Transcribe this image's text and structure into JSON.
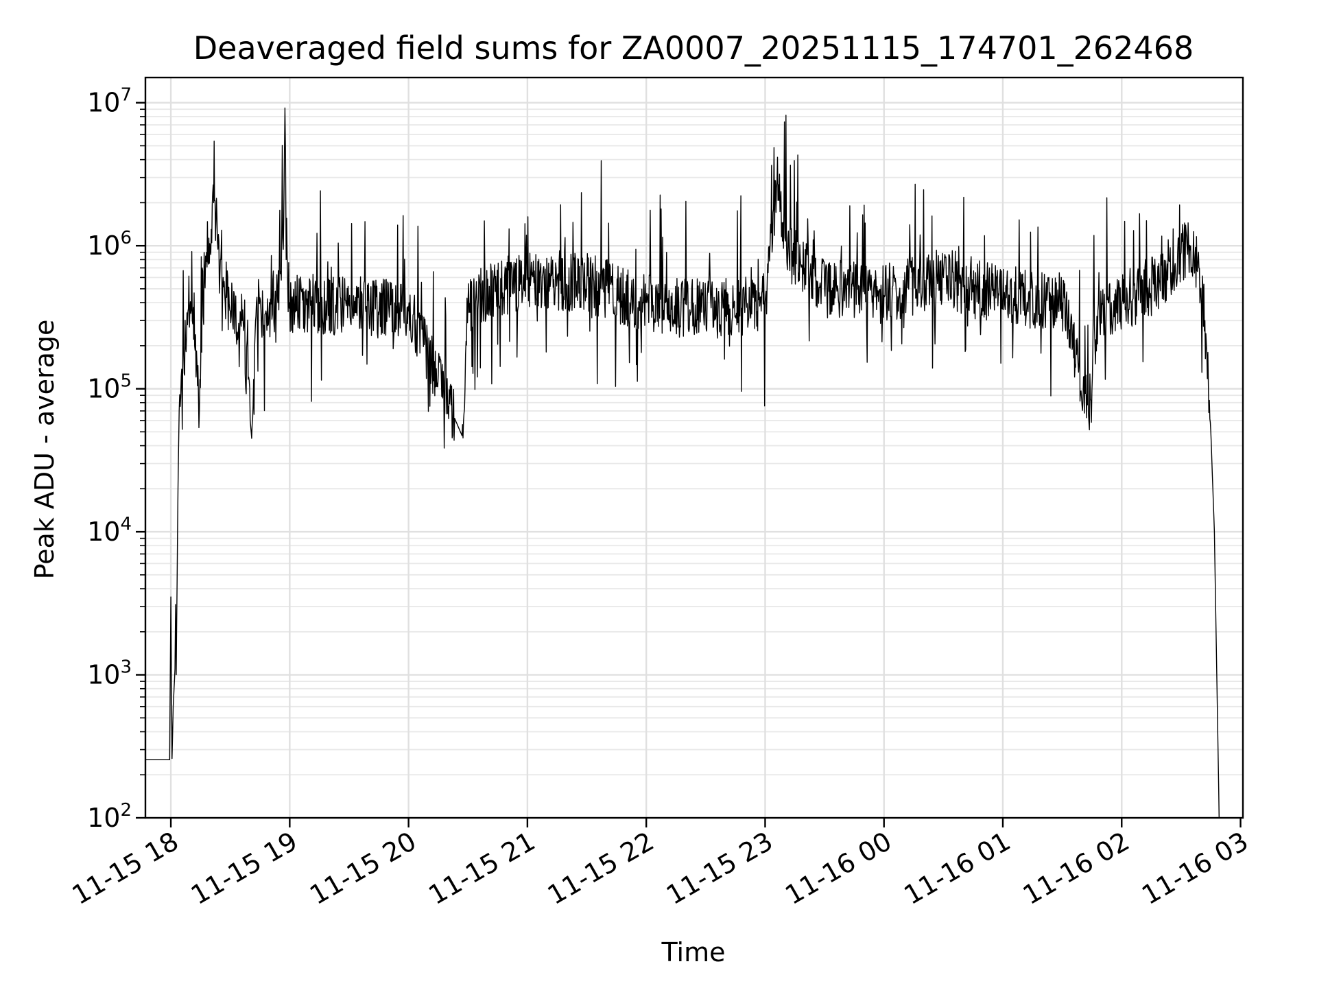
{
  "chart_data": {
    "type": "line",
    "title": "Deaveraged field sums for ZA0007_20251115_174701_262468",
    "xlabel": "Time",
    "ylabel": "Peak ADU - average",
    "yscale": "log",
    "ylim": [
      100,
      15000000
    ],
    "xlim_hours": [
      -0.214,
      9.02
    ],
    "grid": true,
    "legend": "none",
    "colors": {
      "line": "#000000",
      "grid": "#e0e0e0"
    },
    "x_ticks": [
      {
        "hours": 0,
        "label": "11-15 18"
      },
      {
        "hours": 1,
        "label": "11-15 19"
      },
      {
        "hours": 2,
        "label": "11-15 20"
      },
      {
        "hours": 3,
        "label": "11-15 21"
      },
      {
        "hours": 4,
        "label": "11-15 22"
      },
      {
        "hours": 5,
        "label": "11-15 23"
      },
      {
        "hours": 6,
        "label": "11-16 00"
      },
      {
        "hours": 7,
        "label": "11-16 01"
      },
      {
        "hours": 8,
        "label": "11-16 02"
      },
      {
        "hours": 9,
        "label": "11-16 03"
      }
    ],
    "y_ticks": [
      {
        "value": 100,
        "base": "10",
        "exp": "2"
      },
      {
        "value": 1000,
        "base": "10",
        "exp": "3"
      },
      {
        "value": 10000,
        "base": "10",
        "exp": "4"
      },
      {
        "value": 100000,
        "base": "10",
        "exp": "5"
      },
      {
        "value": 1000000,
        "base": "10",
        "exp": "6"
      },
      {
        "value": 10000000,
        "base": "10",
        "exp": "7"
      }
    ],
    "series": [
      {
        "name": "deaveraged field sum",
        "x_unit": "hours after 2025-11-15 18:00",
        "points": [
          [
            -0.214,
            255
          ],
          [
            -0.01,
            255
          ],
          [
            0.0,
            3500
          ],
          [
            0.01,
            260
          ],
          [
            0.02,
            600
          ],
          [
            0.035,
            1100
          ],
          [
            0.04,
            3100
          ],
          [
            0.045,
            1000
          ],
          [
            0.06,
            20000
          ],
          [
            0.07,
            70000
          ],
          [
            0.1,
            150000
          ],
          [
            0.14,
            280000
          ],
          [
            0.16,
            350000
          ],
          [
            0.18,
            300000
          ],
          [
            0.2,
            200000
          ],
          [
            0.22,
            150000
          ],
          [
            0.24,
            70000
          ],
          [
            0.26,
            180000
          ],
          [
            0.3,
            900000
          ],
          [
            0.34,
            1300000
          ],
          [
            0.36,
            2000000
          ],
          [
            0.38,
            1500000
          ],
          [
            0.4,
            1200000
          ],
          [
            0.42,
            800000
          ],
          [
            0.44,
            600000
          ],
          [
            0.5,
            350000
          ],
          [
            0.6,
            300000
          ],
          [
            0.68,
            45000
          ],
          [
            0.72,
            400000
          ],
          [
            0.8,
            350000
          ],
          [
            0.9,
            400000
          ],
          [
            0.95,
            1600000
          ],
          [
            0.96,
            9200000
          ],
          [
            0.97,
            800000
          ],
          [
            1.0,
            400000
          ],
          [
            1.5,
            380000
          ],
          [
            2.0,
            350000
          ],
          [
            2.45,
            47000
          ],
          [
            2.5,
            400000
          ],
          [
            3.0,
            600000
          ],
          [
            3.5,
            550000
          ],
          [
            4.0,
            400000
          ],
          [
            4.5,
            350000
          ],
          [
            5.0,
            400000
          ],
          [
            5.1,
            2800000
          ],
          [
            5.2,
            900000
          ],
          [
            5.5,
            500000
          ],
          [
            6.0,
            450000
          ],
          [
            6.5,
            600000
          ],
          [
            7.0,
            450000
          ],
          [
            7.5,
            400000
          ],
          [
            7.72,
            68000
          ],
          [
            7.8,
            350000
          ],
          [
            8.0,
            400000
          ],
          [
            8.3,
            550000
          ],
          [
            8.5,
            900000
          ],
          [
            8.58,
            1000000
          ],
          [
            8.65,
            700000
          ],
          [
            8.7,
            300000
          ],
          [
            8.75,
            50000
          ],
          [
            8.78,
            10000
          ],
          [
            8.8,
            1000
          ],
          [
            8.82,
            100
          ]
        ]
      }
    ]
  }
}
